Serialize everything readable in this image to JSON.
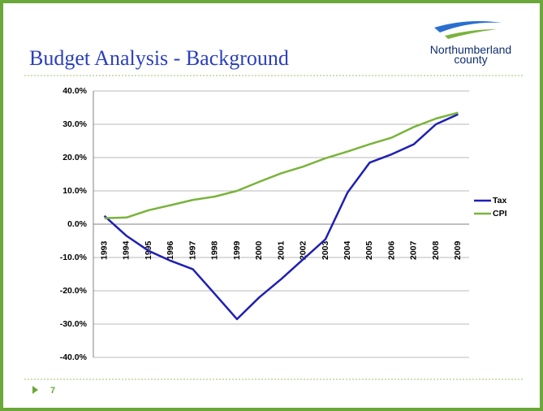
{
  "slide": {
    "title": "Budget Analysis - Background",
    "logo_top": "Northumberland",
    "logo_bottom": "county",
    "page_number": "7"
  },
  "chart_data": {
    "type": "line",
    "categories": [
      "1993",
      "1994",
      "1995",
      "1996",
      "1997",
      "1998",
      "1999",
      "2000",
      "2001",
      "2002",
      "2003",
      "2004",
      "2005",
      "2006",
      "2007",
      "2008",
      "2009"
    ],
    "series": [
      {
        "name": "Tax",
        "color": "#1f1fb4",
        "values": [
          2.5,
          -3.5,
          -8,
          -11,
          -13.5,
          -21,
          -28.5,
          -22,
          -16.5,
          -10.5,
          -4.5,
          9.5,
          18.5,
          21,
          24,
          30,
          33
        ]
      },
      {
        "name": "CPI",
        "color": "#7ab33c",
        "values": [
          1.8,
          2,
          4.2,
          5.7,
          7.3,
          8.3,
          10,
          12.7,
          15.3,
          17.3,
          19.8,
          21.8,
          24,
          26,
          29.2,
          31.7,
          33.5
        ]
      }
    ],
    "ylim": [
      -40,
      40
    ],
    "yticks": [
      {
        "value": 40,
        "label": "40.0%"
      },
      {
        "value": 30,
        "label": "30.0%"
      },
      {
        "value": 20,
        "label": "20.0%"
      },
      {
        "value": 10,
        "label": "10.0%"
      },
      {
        "value": 0,
        "label": "0.0%"
      },
      {
        "value": -10,
        "label": "-10.0%"
      },
      {
        "value": -20,
        "label": "-20.0%"
      },
      {
        "value": -30,
        "label": "-30.0%"
      },
      {
        "value": -40,
        "label": "-40.0%"
      }
    ],
    "grid": true,
    "legend": "right"
  }
}
